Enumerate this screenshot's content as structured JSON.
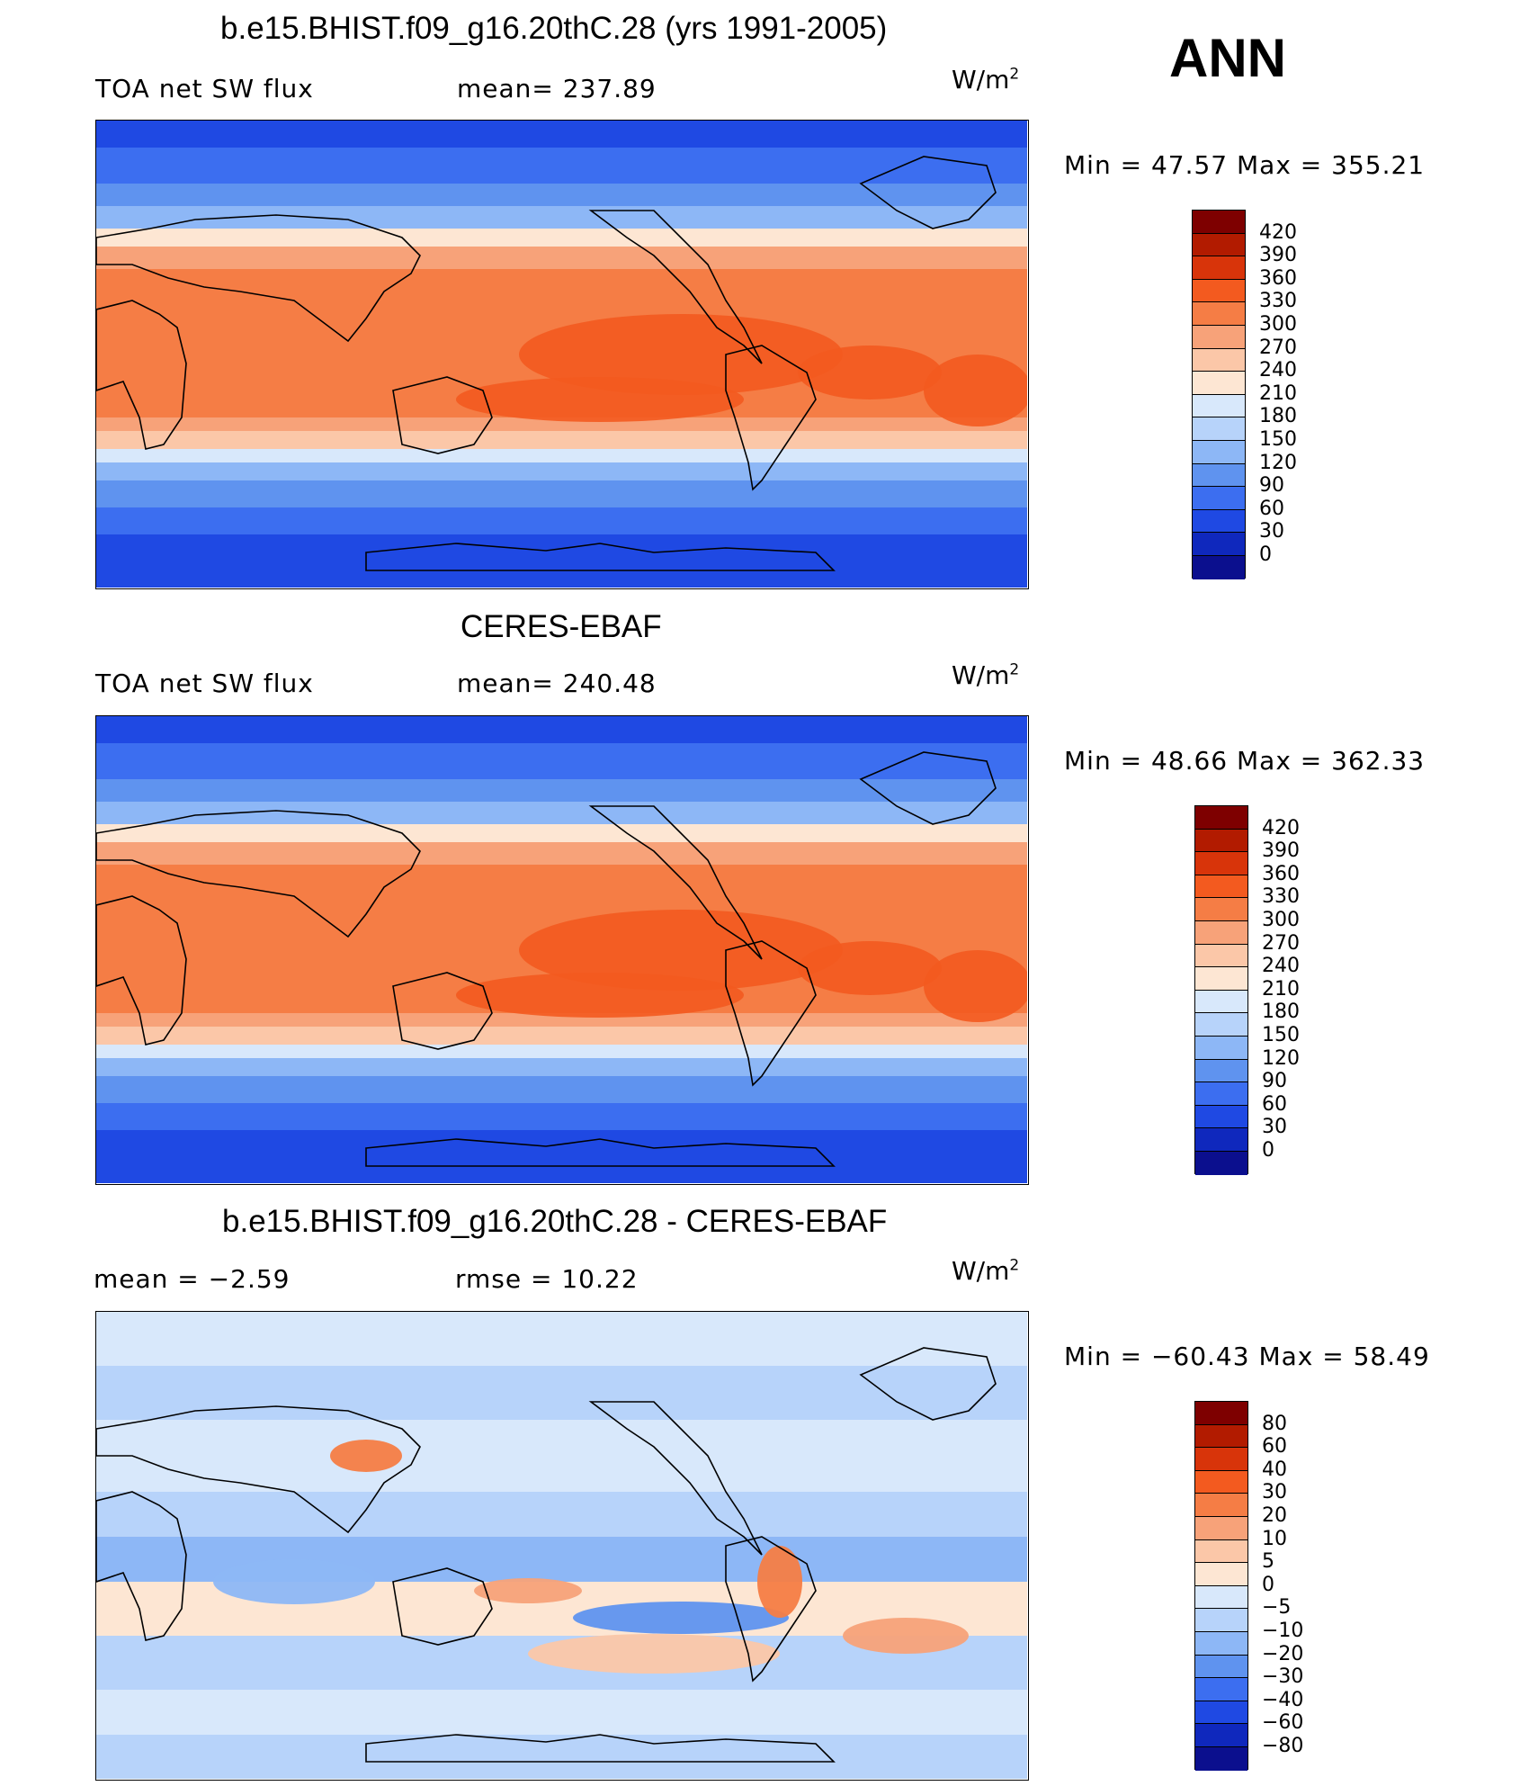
{
  "season": "ANN",
  "panels": [
    {
      "title": "b.e15.BHIST.f09_g16.20thC.28 (yrs 1991-2005)",
      "left": "TOA net SW flux",
      "mid": "mean= 237.89",
      "units": "W/m",
      "units_sup": "2",
      "minmax": "Min =   47.57 Max = 355.21",
      "levels": [
        "420",
        "390",
        "360",
        "330",
        "300",
        "270",
        "240",
        "210",
        "180",
        "150",
        "120",
        "90",
        "60",
        "30",
        "0"
      ],
      "field": "model"
    },
    {
      "title": "CERES-EBAF",
      "left": "TOA net SW flux",
      "mid": "mean= 240.48",
      "units": "W/m",
      "units_sup": "2",
      "minmax": "Min =   48.66 Max = 362.33",
      "levels": [
        "420",
        "390",
        "360",
        "330",
        "300",
        "270",
        "240",
        "210",
        "180",
        "150",
        "120",
        "90",
        "60",
        "30",
        "0"
      ],
      "field": "obs"
    },
    {
      "title": "b.e15.BHIST.f09_g16.20thC.28 - CERES-EBAF",
      "left": "mean =   −2.59",
      "mid": "rmse =    10.22",
      "units": "W/m",
      "units_sup": "2",
      "minmax": "Min = −60.43 Max =   58.49",
      "levels": [
        "80",
        "60",
        "40",
        "30",
        "20",
        "10",
        "5",
        "0",
        "−5",
        "−10",
        "−20",
        "−30",
        "−40",
        "−60",
        "−80"
      ],
      "field": "diff"
    }
  ],
  "colorbar_colors": [
    "#7e0000",
    "#b21b00",
    "#d8340a",
    "#f35a1f",
    "#f57d45",
    "#f7a279",
    "#fbc7a8",
    "#fde6d3",
    "#d8e8fb",
    "#b7d3fa",
    "#8db7f6",
    "#5f93ef",
    "#3c6ef0",
    "#1f49e3",
    "#0f28bd",
    "#0b0f8e"
  ]
}
